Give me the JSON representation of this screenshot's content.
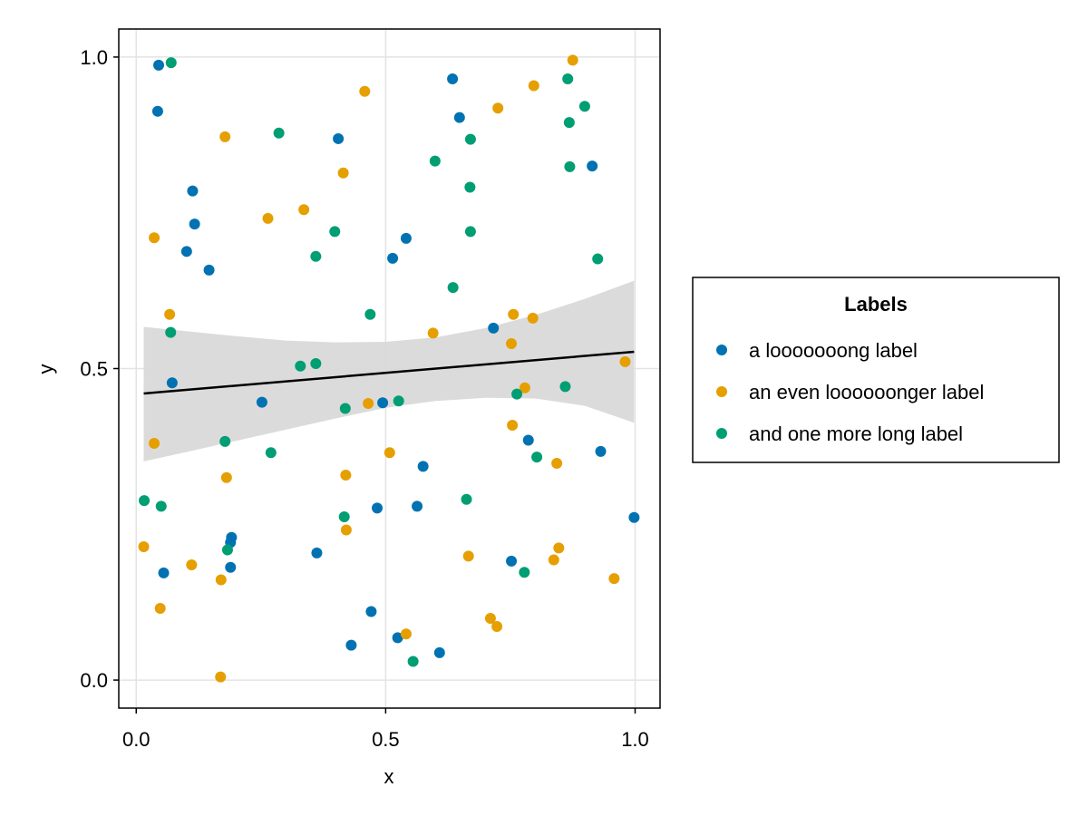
{
  "chart_data": {
    "type": "scatter",
    "title": "",
    "xlabel": "x",
    "ylabel": "y",
    "xlim": [
      -0.035,
      1.05
    ],
    "ylim": [
      -0.045,
      1.045
    ],
    "x_ticks": [
      "0.0",
      "0.5",
      "1.0"
    ],
    "y_ticks": [
      "0.0",
      "0.5",
      "1.0"
    ],
    "grid": true,
    "legend": {
      "title": "Labels",
      "placement": "right"
    },
    "colors": {
      "series_1": "#0072b2",
      "series_2": "#e69f00",
      "series_3": "#009e73",
      "fit_line": "#000000",
      "band": "#d9d9d9"
    },
    "series": [
      {
        "name": "a looooooong label",
        "color": "#0072b2",
        "points": [
          [
            0.045,
            0.987
          ],
          [
            0.043,
            0.913
          ],
          [
            0.113,
            0.785
          ],
          [
            0.117,
            0.732
          ],
          [
            0.101,
            0.688
          ],
          [
            0.146,
            0.658
          ],
          [
            0.072,
            0.477
          ],
          [
            0.252,
            0.446
          ],
          [
            0.055,
            0.172
          ],
          [
            0.191,
            0.229
          ],
          [
            0.189,
            0.221
          ],
          [
            0.189,
            0.181
          ],
          [
            0.362,
            0.204
          ],
          [
            0.405,
            0.869
          ],
          [
            0.514,
            0.677
          ],
          [
            0.541,
            0.709
          ],
          [
            0.494,
            0.445
          ],
          [
            0.483,
            0.276
          ],
          [
            0.575,
            0.343
          ],
          [
            0.563,
            0.279
          ],
          [
            0.471,
            0.11
          ],
          [
            0.431,
            0.056
          ],
          [
            0.524,
            0.068
          ],
          [
            0.608,
            0.044
          ],
          [
            0.634,
            0.965
          ],
          [
            0.648,
            0.903
          ],
          [
            0.716,
            0.565
          ],
          [
            0.786,
            0.385
          ],
          [
            0.752,
            0.191
          ],
          [
            0.914,
            0.825
          ],
          [
            0.931,
            0.367
          ],
          [
            0.998,
            0.261
          ]
        ]
      },
      {
        "name": "an even loooooonger label",
        "color": "#e69f00",
        "points": [
          [
            0.036,
            0.71
          ],
          [
            0.067,
            0.587
          ],
          [
            0.036,
            0.38
          ],
          [
            0.015,
            0.214
          ],
          [
            0.048,
            0.115
          ],
          [
            0.111,
            0.185
          ],
          [
            0.17,
            0.161
          ],
          [
            0.178,
            0.872
          ],
          [
            0.181,
            0.325
          ],
          [
            0.264,
            0.741
          ],
          [
            0.336,
            0.755
          ],
          [
            0.415,
            0.814
          ],
          [
            0.42,
            0.329
          ],
          [
            0.421,
            0.241
          ],
          [
            0.169,
            0.005
          ],
          [
            0.458,
            0.945
          ],
          [
            0.465,
            0.444
          ],
          [
            0.508,
            0.365
          ],
          [
            0.541,
            0.074
          ],
          [
            0.595,
            0.557
          ],
          [
            0.666,
            0.199
          ],
          [
            0.725,
            0.918
          ],
          [
            0.756,
            0.587
          ],
          [
            0.752,
            0.54
          ],
          [
            0.754,
            0.409
          ],
          [
            0.779,
            0.469
          ],
          [
            0.71,
            0.099
          ],
          [
            0.723,
            0.086
          ],
          [
            0.797,
            0.954
          ],
          [
            0.795,
            0.581
          ],
          [
            0.875,
            0.995
          ],
          [
            0.843,
            0.348
          ],
          [
            0.847,
            0.212
          ],
          [
            0.837,
            0.193
          ],
          [
            0.958,
            0.163
          ],
          [
            0.98,
            0.511
          ]
        ]
      },
      {
        "name": "and one more long label",
        "color": "#009e73",
        "points": [
          [
            0.07,
            0.991
          ],
          [
            0.069,
            0.558
          ],
          [
            0.016,
            0.288
          ],
          [
            0.05,
            0.279
          ],
          [
            0.178,
            0.383
          ],
          [
            0.183,
            0.209
          ],
          [
            0.286,
            0.878
          ],
          [
            0.27,
            0.365
          ],
          [
            0.329,
            0.504
          ],
          [
            0.36,
            0.508
          ],
          [
            0.36,
            0.68
          ],
          [
            0.398,
            0.72
          ],
          [
            0.419,
            0.436
          ],
          [
            0.417,
            0.262
          ],
          [
            0.469,
            0.587
          ],
          [
            0.526,
            0.448
          ],
          [
            0.555,
            0.03
          ],
          [
            0.599,
            0.833
          ],
          [
            0.635,
            0.63
          ],
          [
            0.67,
            0.868
          ],
          [
            0.669,
            0.791
          ],
          [
            0.67,
            0.72
          ],
          [
            0.662,
            0.29
          ],
          [
            0.763,
            0.459
          ],
          [
            0.803,
            0.358
          ],
          [
            0.778,
            0.173
          ],
          [
            0.865,
            0.965
          ],
          [
            0.868,
            0.895
          ],
          [
            0.869,
            0.824
          ],
          [
            0.899,
            0.921
          ],
          [
            0.925,
            0.676
          ],
          [
            0.86,
            0.471
          ]
        ]
      }
    ],
    "fit_line": {
      "x": [
        0.015,
        0.998
      ],
      "y": [
        0.46,
        0.527
      ]
    },
    "confidence_band": {
      "x": [
        0.015,
        0.1,
        0.2,
        0.3,
        0.4,
        0.5,
        0.6,
        0.7,
        0.8,
        0.9,
        0.998
      ],
      "upper": [
        0.567,
        0.56,
        0.552,
        0.545,
        0.542,
        0.543,
        0.55,
        0.565,
        0.586,
        0.612,
        0.641
      ],
      "lower": [
        0.351,
        0.366,
        0.384,
        0.402,
        0.42,
        0.437,
        0.448,
        0.453,
        0.452,
        0.44,
        0.413
      ]
    }
  }
}
